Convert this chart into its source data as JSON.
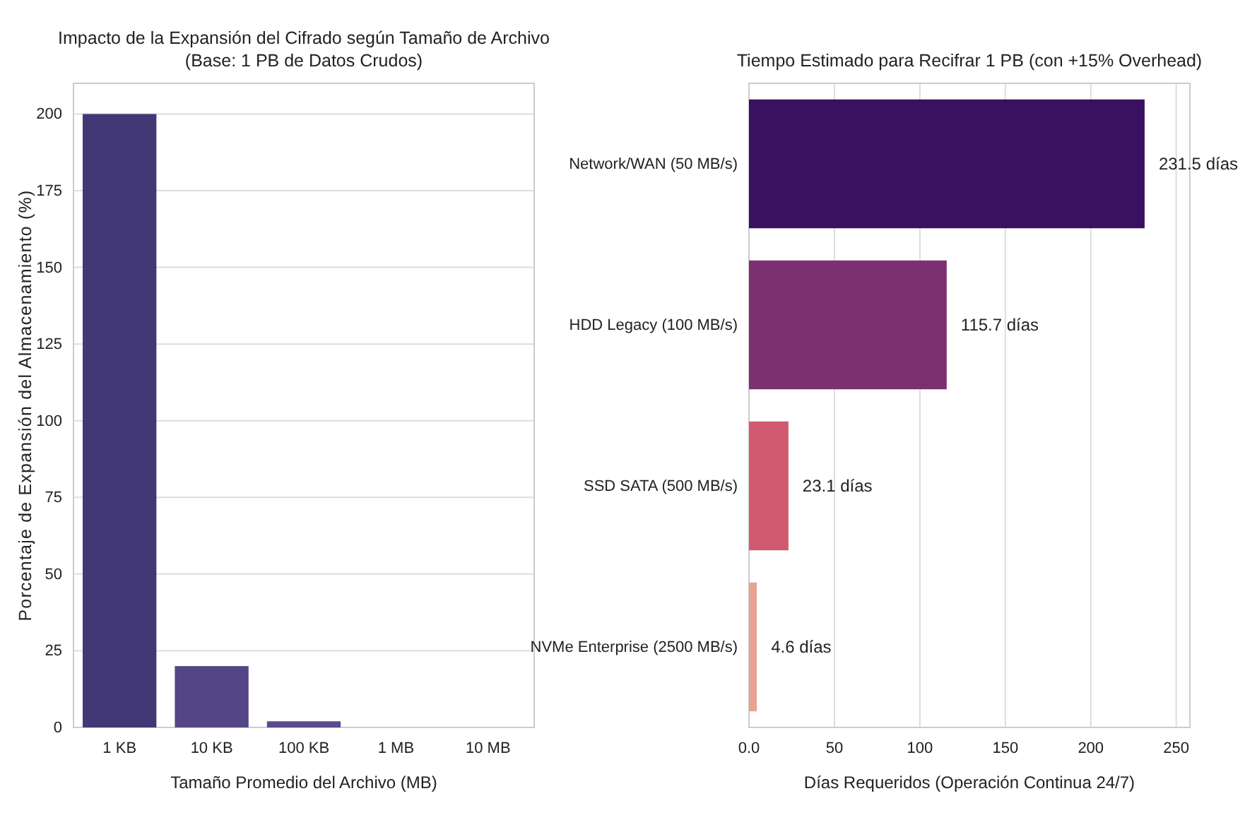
{
  "chart_data": [
    {
      "type": "bar",
      "title": "Impacto de la Expansión del Cifrado según Tamaño de Archivo\n(Base: 1 PB de Datos Crudos)",
      "xlabel": "Tamaño Promedio del Archivo (MB)",
      "ylabel": "Porcentaje de Expansión del Almacenamiento (%)",
      "categories": [
        "1 KB",
        "10 KB",
        "100 KB",
        "1 MB",
        "10 MB"
      ],
      "values": [
        200,
        20,
        2,
        null,
        null
      ],
      "colors": [
        "#433876",
        "#544586",
        "#5a4a8e",
        null,
        null
      ],
      "ylim": [
        0,
        210
      ],
      "yticks": [
        0,
        25,
        50,
        75,
        100,
        125,
        150,
        175,
        200
      ],
      "grid": "y"
    },
    {
      "type": "bar",
      "orientation": "horizontal",
      "title": "Tiempo Estimado para Recifrar 1 PB (con +15% Overhead)",
      "xlabel": "Días Requeridos (Operación Continua 24/7)",
      "categories": [
        "Network/WAN (50 MB/s)",
        "HDD Legacy (100 MB/s)",
        "SSD SATA (500 MB/s)",
        "NVMe Enterprise (2500 MB/s)"
      ],
      "values": [
        231.5,
        115.7,
        23.1,
        4.6
      ],
      "value_labels": [
        "231.5 días",
        "115.7 días",
        "23.1 días",
        "4.6 días"
      ],
      "colors": [
        "#3a1060",
        "#7d3070",
        "#d05a70",
        "#e8a394"
      ],
      "xlim": [
        0,
        258
      ],
      "xticks": [
        {
          "value": 0,
          "label": "0.0"
        },
        50,
        100,
        150,
        200,
        250
      ],
      "grid": "x"
    }
  ]
}
